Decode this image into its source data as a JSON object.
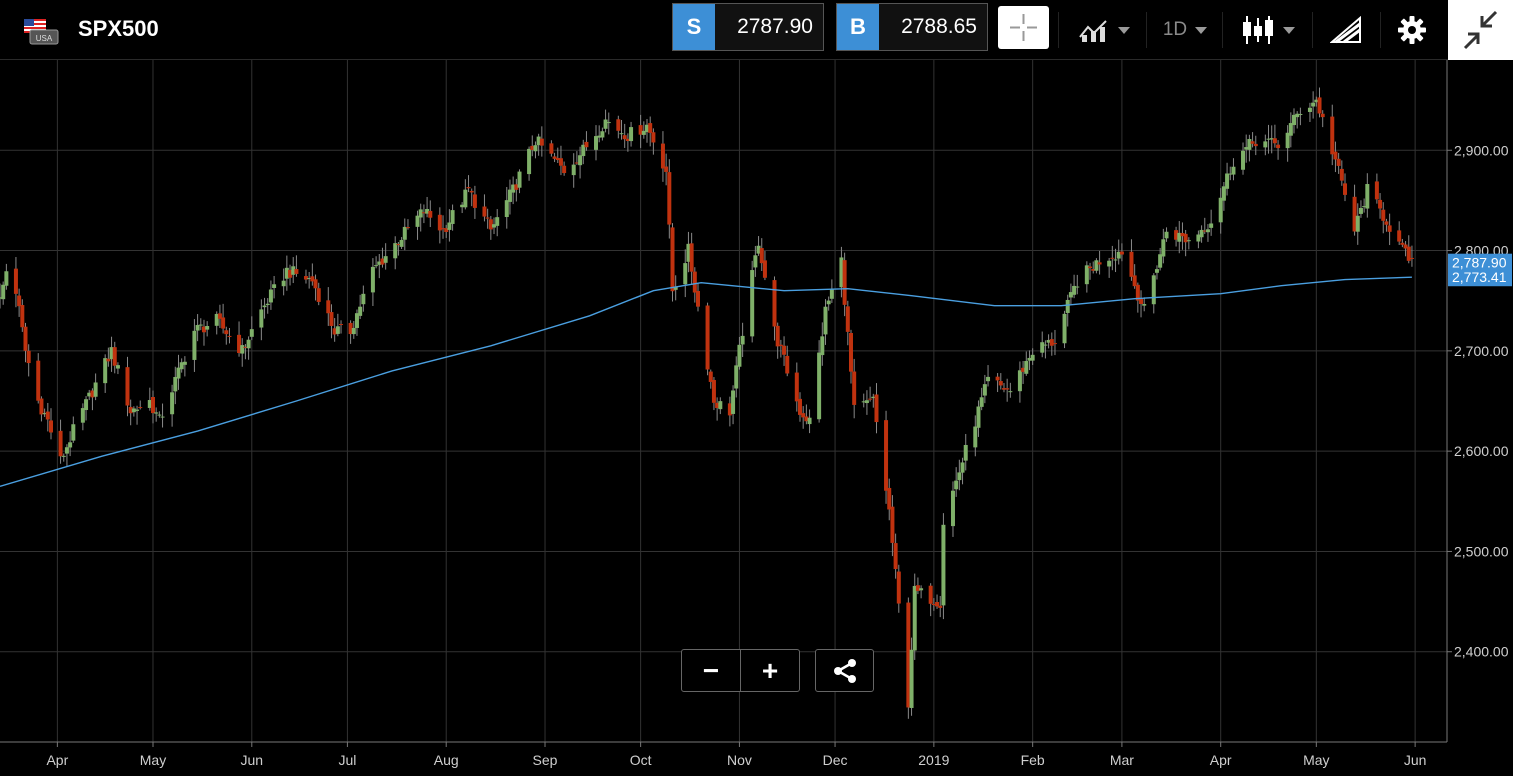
{
  "header": {
    "symbol": "SPX500",
    "flag_label": "USA",
    "sell": {
      "label": "S",
      "price": "2787.90"
    },
    "buy": {
      "label": "B",
      "price": "2788.65"
    },
    "timeframe": "1D",
    "icons": [
      "crosshair-icon",
      "chart-style-icon",
      "candlestick-icon",
      "drawing-tools-icon",
      "gear-icon",
      "collapse-icon"
    ]
  },
  "controls": {
    "zoom_out": "−",
    "zoom_in": "+"
  },
  "colors": {
    "up": "#7fb069",
    "down": "#c0320f",
    "ma_line": "#4a9fe0",
    "price_tag": "#3d8fd6",
    "accent": "#3d8fd6"
  },
  "chart_data": {
    "type": "candlestick",
    "grid": true,
    "y_axis_position": "right",
    "ylim": [
      2310,
      2990
    ],
    "y_ticks": [
      2400,
      2500,
      2600,
      2700,
      2800,
      2900
    ],
    "y_tick_labels": [
      "2,400.00",
      "2,500.00",
      "2,600.00",
      "2,700.00",
      "2,800.00",
      "2,900.00"
    ],
    "x_range": [
      "2018-03-14",
      "2019-06-11"
    ],
    "x_ticks": [
      {
        "label": "Apr",
        "date": "2018-04-01"
      },
      {
        "label": "May",
        "date": "2018-05-01"
      },
      {
        "label": "Jun",
        "date": "2018-06-01"
      },
      {
        "label": "Jul",
        "date": "2018-07-01"
      },
      {
        "label": "Aug",
        "date": "2018-08-01"
      },
      {
        "label": "Sep",
        "date": "2018-09-01"
      },
      {
        "label": "Oct",
        "date": "2018-10-01"
      },
      {
        "label": "Nov",
        "date": "2018-11-01"
      },
      {
        "label": "Dec",
        "date": "2018-12-01"
      },
      {
        "label": "2019",
        "date": "2019-01-01"
      },
      {
        "label": "Feb",
        "date": "2019-02-01"
      },
      {
        "label": "Mar",
        "date": "2019-03-01"
      },
      {
        "label": "Apr",
        "date": "2019-04-01"
      },
      {
        "label": "May",
        "date": "2019-05-01"
      },
      {
        "label": "Jun",
        "date": "2019-06-01"
      }
    ],
    "last_price": 2787.9,
    "last_price_label": "2,787.90",
    "ma_value": 2773.41,
    "ma_value_label": "2,773.41",
    "close_path": [
      [
        "2018-03-14",
        2750
      ],
      [
        "2018-03-16",
        2780
      ],
      [
        "2018-03-19",
        2760
      ],
      [
        "2018-03-22",
        2700
      ],
      [
        "2018-03-26",
        2650
      ],
      [
        "2018-03-29",
        2630
      ],
      [
        "2018-04-02",
        2590
      ],
      [
        "2018-04-06",
        2620
      ],
      [
        "2018-04-12",
        2660
      ],
      [
        "2018-04-18",
        2700
      ],
      [
        "2018-04-24",
        2640
      ],
      [
        "2018-04-30",
        2650
      ],
      [
        "2018-05-03",
        2630
      ],
      [
        "2018-05-08",
        2670
      ],
      [
        "2018-05-14",
        2720
      ],
      [
        "2018-05-21",
        2730
      ],
      [
        "2018-05-29",
        2700
      ],
      [
        "2018-06-04",
        2740
      ],
      [
        "2018-06-12",
        2780
      ],
      [
        "2018-06-20",
        2770
      ],
      [
        "2018-06-27",
        2720
      ],
      [
        "2018-07-02",
        2720
      ],
      [
        "2018-07-09",
        2780
      ],
      [
        "2018-07-17",
        2810
      ],
      [
        "2018-07-25",
        2840
      ],
      [
        "2018-07-31",
        2820
      ],
      [
        "2018-08-08",
        2860
      ],
      [
        "2018-08-15",
        2820
      ],
      [
        "2018-08-22",
        2860
      ],
      [
        "2018-08-29",
        2910
      ],
      [
        "2018-09-07",
        2880
      ],
      [
        "2018-09-13",
        2900
      ],
      [
        "2018-09-20",
        2930
      ],
      [
        "2018-09-27",
        2915
      ],
      [
        "2018-10-03",
        2925
      ],
      [
        "2018-10-09",
        2880
      ],
      [
        "2018-10-11",
        2760
      ],
      [
        "2018-10-16",
        2800
      ],
      [
        "2018-10-24",
        2650
      ],
      [
        "2018-10-29",
        2640
      ],
      [
        "2018-11-02",
        2720
      ],
      [
        "2018-11-07",
        2810
      ],
      [
        "2018-11-12",
        2720
      ],
      [
        "2018-11-20",
        2640
      ],
      [
        "2018-11-23",
        2630
      ],
      [
        "2018-11-28",
        2740
      ],
      [
        "2018-12-03",
        2790
      ],
      [
        "2018-12-07",
        2640
      ],
      [
        "2018-12-13",
        2650
      ],
      [
        "2018-12-18",
        2540
      ],
      [
        "2018-12-24",
        2350
      ],
      [
        "2018-12-26",
        2460
      ],
      [
        "2019-01-03",
        2450
      ],
      [
        "2019-01-04",
        2530
      ],
      [
        "2019-01-10",
        2590
      ],
      [
        "2019-01-18",
        2670
      ],
      [
        "2019-01-25",
        2660
      ],
      [
        "2019-02-01",
        2700
      ],
      [
        "2019-02-08",
        2710
      ],
      [
        "2019-02-15",
        2770
      ],
      [
        "2019-02-22",
        2790
      ],
      [
        "2019-03-01",
        2800
      ],
      [
        "2019-03-08",
        2740
      ],
      [
        "2019-03-15",
        2820
      ],
      [
        "2019-03-22",
        2810
      ],
      [
        "2019-03-29",
        2830
      ],
      [
        "2019-04-05",
        2890
      ],
      [
        "2019-04-12",
        2910
      ],
      [
        "2019-04-19",
        2905
      ],
      [
        "2019-04-26",
        2940
      ],
      [
        "2019-05-01",
        2950
      ],
      [
        "2019-05-07",
        2890
      ],
      [
        "2019-05-13",
        2820
      ],
      [
        "2019-05-17",
        2860
      ],
      [
        "2019-05-23",
        2830
      ],
      [
        "2019-05-28",
        2800
      ],
      [
        "2019-05-31",
        2787.9
      ]
    ],
    "ma_series": [
      [
        "2018-03-14",
        2565
      ],
      [
        "2018-04-15",
        2595
      ],
      [
        "2018-05-15",
        2620
      ],
      [
        "2018-06-15",
        2650
      ],
      [
        "2018-07-15",
        2680
      ],
      [
        "2018-08-15",
        2705
      ],
      [
        "2018-09-15",
        2735
      ],
      [
        "2018-10-05",
        2760
      ],
      [
        "2018-10-20",
        2768
      ],
      [
        "2018-11-15",
        2760
      ],
      [
        "2018-12-05",
        2762
      ],
      [
        "2018-12-25",
        2755
      ],
      [
        "2019-01-20",
        2745
      ],
      [
        "2019-02-10",
        2745
      ],
      [
        "2019-03-05",
        2752
      ],
      [
        "2019-04-01",
        2757
      ],
      [
        "2019-04-20",
        2765
      ],
      [
        "2019-05-10",
        2771
      ],
      [
        "2019-05-31",
        2773.41
      ]
    ],
    "x_ticks_note": ""
  }
}
